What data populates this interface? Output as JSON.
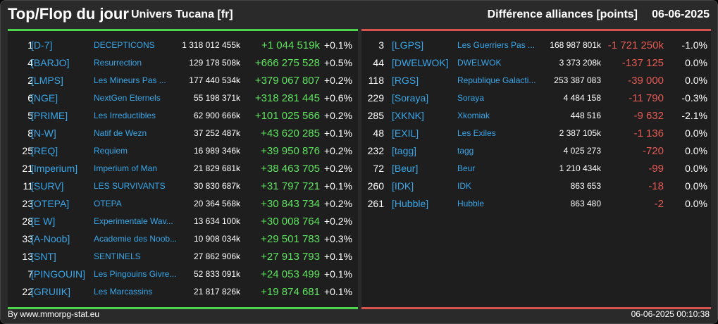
{
  "header": {
    "title": "Top/Flop du jour",
    "universe": "Univers Tucana [fr]",
    "subtitle": "Différence alliances [points]",
    "date": "06-06-2025"
  },
  "colors": {
    "positive": "#5fe35f",
    "negative": "#e35a55",
    "tag": "#3aa6e8",
    "top_border": "#4dd24d",
    "flop_border": "#d9534f"
  },
  "top": [
    {
      "rank": "1",
      "tag": "[D-7]",
      "name": "DECEPTICONS",
      "points": "1 318 012 455k",
      "diff": "+1 044 519k",
      "pct": "+0.1%"
    },
    {
      "rank": "4",
      "tag": "[BARJO]",
      "name": "Resurrection",
      "points": "129 178 508k",
      "diff": "+666 275 528",
      "pct": "+0.5%"
    },
    {
      "rank": "2",
      "tag": "[LMPS]",
      "name": "Les Mineurs Pas ...",
      "points": "177 440 534k",
      "diff": "+379 067 807",
      "pct": "+0.2%"
    },
    {
      "rank": "6",
      "tag": "[NGE]",
      "name": "NextGen Eternels",
      "points": "55 198 371k",
      "diff": "+318 281 445",
      "pct": "+0.6%"
    },
    {
      "rank": "5",
      "tag": "[PRIME]",
      "name": "Les Irreductibles",
      "points": "62 900 666k",
      "diff": "+101 025 566",
      "pct": "+0.2%"
    },
    {
      "rank": "8",
      "tag": "[N-W]",
      "name": "Natif de Wezn",
      "points": "37 252 487k",
      "diff": "+43 620 285",
      "pct": "+0.1%"
    },
    {
      "rank": "25",
      "tag": "[REQ]",
      "name": "Requiem",
      "points": "16 989 346k",
      "diff": "+39 950 876",
      "pct": "+0.2%"
    },
    {
      "rank": "21",
      "tag": "[Imperium]",
      "name": "Imperium of Man",
      "points": "21 829 681k",
      "diff": "+38 463 705",
      "pct": "+0.2%"
    },
    {
      "rank": "11",
      "tag": "[SURV]",
      "name": "LES SURVIVANTS",
      "points": "30 830 687k",
      "diff": "+31 797 721",
      "pct": "+0.1%"
    },
    {
      "rank": "23",
      "tag": "[OTEPA]",
      "name": "OTEPA",
      "points": "20 364 568k",
      "diff": "+30 843 734",
      "pct": "+0.2%"
    },
    {
      "rank": "28",
      "tag": "[E W]",
      "name": "Experimentale Wav...",
      "points": "13 634 100k",
      "diff": "+30 008 764",
      "pct": "+0.2%"
    },
    {
      "rank": "33",
      "tag": "[A-Noob]",
      "name": "Academie des Noob...",
      "points": "10 908 034k",
      "diff": "+29 501 783",
      "pct": "+0.3%"
    },
    {
      "rank": "13",
      "tag": "[SNT]",
      "name": "SENTINELS",
      "points": "27 862 906k",
      "diff": "+27 913 793",
      "pct": "+0.1%"
    },
    {
      "rank": "7",
      "tag": "[PINGOUIN]",
      "name": "Les Pingouins Givre...",
      "points": "52 833 091k",
      "diff": "+24 053 499",
      "pct": "+0.1%"
    },
    {
      "rank": "22",
      "tag": "[GRUIIK]",
      "name": "Les Marcassins",
      "points": "21 817 826k",
      "diff": "+19 874 681",
      "pct": "+0.1%"
    }
  ],
  "flop": [
    {
      "rank": "3",
      "tag": "[LGPS]",
      "name": "Les Guerriers Pas ...",
      "points": "168 987 801k",
      "diff": "-1 721 250k",
      "pct": "-1.0%"
    },
    {
      "rank": "44",
      "tag": "[DWELWOK]",
      "name": "DWELWOK",
      "points": "3 373 208k",
      "diff": "-137 125",
      "pct": "0.0%"
    },
    {
      "rank": "118",
      "tag": "[RGS]",
      "name": "Republique Galacti...",
      "points": "253 387 083",
      "diff": "-39 000",
      "pct": "0.0%"
    },
    {
      "rank": "229",
      "tag": "[Soraya]",
      "name": "Soraya",
      "points": "4 484 158",
      "diff": "-11 790",
      "pct": "-0.3%"
    },
    {
      "rank": "285",
      "tag": "[XKNK]",
      "name": "Xkomiak",
      "points": "448 516",
      "diff": "-9 632",
      "pct": "-2.1%"
    },
    {
      "rank": "48",
      "tag": "[EXIL]",
      "name": "Les Exiles",
      "points": "2 387 105k",
      "diff": "-1 136",
      "pct": "0.0%"
    },
    {
      "rank": "232",
      "tag": "[tagg]",
      "name": "tagg",
      "points": "4 025 273",
      "diff": "-720",
      "pct": "0.0%"
    },
    {
      "rank": "72",
      "tag": "[Beur]",
      "name": "Beur",
      "points": "1 210 434k",
      "diff": "-99",
      "pct": "0.0%"
    },
    {
      "rank": "260",
      "tag": "[IDK]",
      "name": "IDK",
      "points": "863 653",
      "diff": "-18",
      "pct": "0.0%"
    },
    {
      "rank": "261",
      "tag": "[Hubble]",
      "name": "Hubble",
      "points": "863 480",
      "diff": "-2",
      "pct": "0.0%"
    }
  ],
  "footer": {
    "credit": "By www.mmorpg-stat.eu",
    "timestamp": "06-06-2025 00:10:38"
  }
}
